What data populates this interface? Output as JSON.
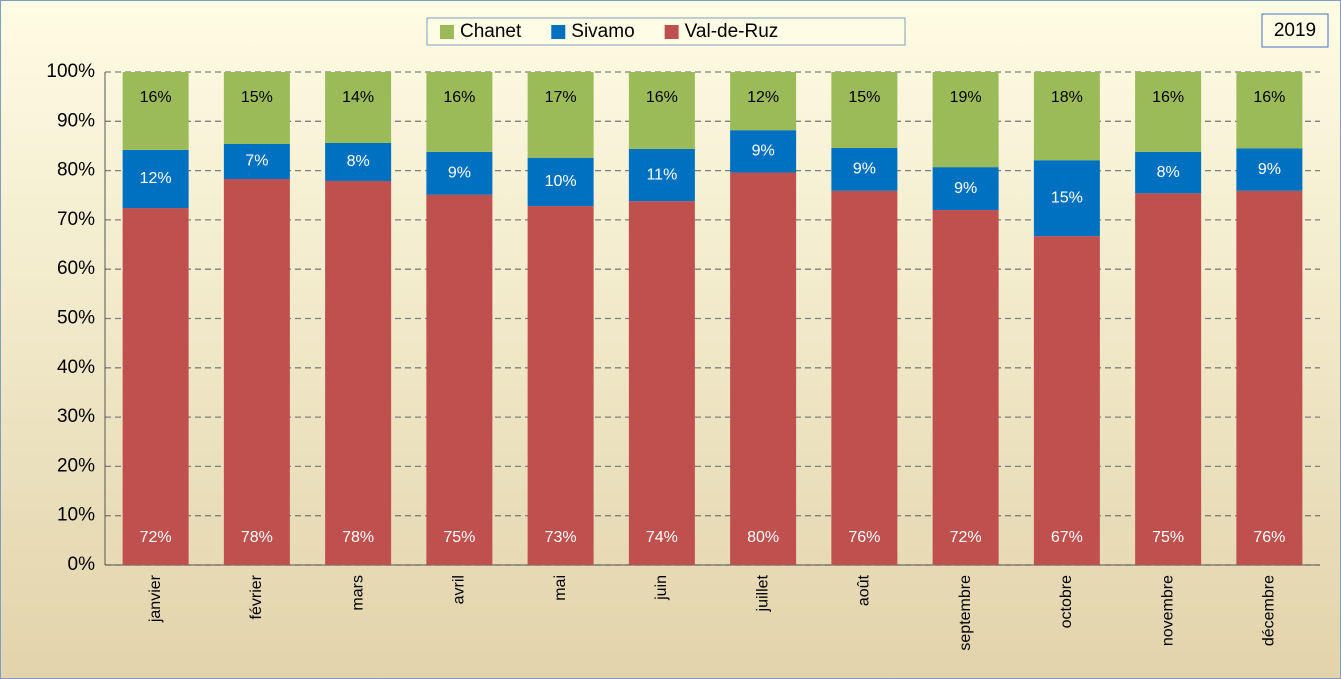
{
  "chart_data": {
    "type": "stacked_bar",
    "annotation": "2019",
    "categories": [
      "janvier",
      "février",
      "mars",
      "avril",
      "mai",
      "juin",
      "juillet",
      "août",
      "septembre",
      "octobre",
      "novembre",
      "décembre"
    ],
    "series": [
      {
        "name": "Chanet",
        "color": "#9bbb59",
        "values": [
          15.8,
          14.6,
          14.4,
          16.2,
          17.4,
          15.6,
          11.8,
          15.4,
          19.3,
          17.9,
          16.2,
          15.5
        ],
        "value_labels": [
          "16%",
          "15%",
          "14%",
          "16%",
          "17%",
          "16%",
          "12%",
          "15%",
          "19%",
          "18%",
          "16%",
          "16%"
        ]
      },
      {
        "name": "Sivamo",
        "color": "#0070c0",
        "values": [
          11.8,
          7.1,
          7.7,
          8.7,
          9.8,
          10.6,
          8.6,
          8.7,
          8.7,
          15.4,
          8.4,
          8.6
        ],
        "value_labels": [
          "12%",
          "7%",
          "8%",
          "9%",
          "10%",
          "11%",
          "9%",
          "9%",
          "9%",
          "15%",
          "8%",
          "9%"
        ]
      },
      {
        "name": "Val-de-Ruz",
        "color": "#c0504d",
        "values": [
          72.4,
          78.3,
          77.9,
          75.1,
          72.8,
          73.8,
          79.6,
          75.9,
          72.0,
          66.7,
          75.4,
          75.9
        ],
        "value_labels": [
          "72%",
          "78%",
          "78%",
          "75%",
          "73%",
          "74%",
          "80%",
          "76%",
          "72%",
          "67%",
          "75%",
          "76%"
        ]
      }
    ],
    "ylim": [
      0,
      100
    ],
    "yticks": [
      {
        "value": 0,
        "label": "0%"
      },
      {
        "value": 10,
        "label": "10%"
      },
      {
        "value": 20,
        "label": "20%"
      },
      {
        "value": 30,
        "label": "30%"
      },
      {
        "value": 40,
        "label": "40%"
      },
      {
        "value": 50,
        "label": "50%"
      },
      {
        "value": 60,
        "label": "60%"
      },
      {
        "value": 70,
        "label": "70%"
      },
      {
        "value": 80,
        "label": "80%"
      },
      {
        "value": 90,
        "label": "90%"
      },
      {
        "value": 100,
        "label": "100%"
      }
    ],
    "grid": true
  }
}
